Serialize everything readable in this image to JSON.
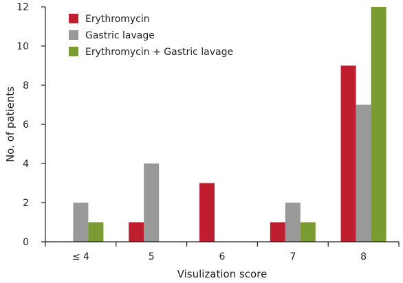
{
  "chart_data": {
    "type": "bar",
    "title": "",
    "xlabel": "Visulization score",
    "ylabel": "No. of patients",
    "categories": [
      "≤ 4",
      "5",
      "6",
      "7",
      "8"
    ],
    "ylim": [
      0,
      12
    ],
    "yticks": [
      0,
      2,
      4,
      6,
      8,
      10,
      12
    ],
    "grid": false,
    "legend_position": "top-left",
    "series": [
      {
        "name": "Erythromycin",
        "color": "#be1e2d",
        "values": [
          0,
          1,
          3,
          1,
          9
        ]
      },
      {
        "name": "Gastric lavage",
        "color": "#999999",
        "values": [
          2,
          4,
          0,
          2,
          7
        ]
      },
      {
        "name": "Erythromycin + Gastric lavage",
        "color": "#7a9a32",
        "values": [
          1,
          0,
          0,
          1,
          12
        ]
      }
    ]
  }
}
